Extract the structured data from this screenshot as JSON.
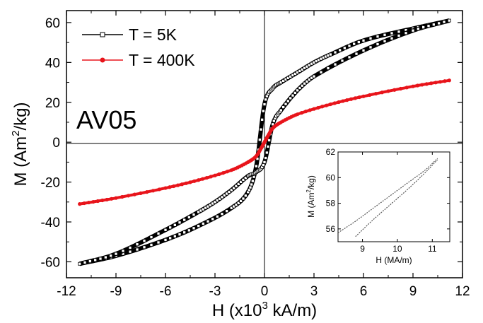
{
  "chart_data": [
    {
      "type": "line",
      "xlabel": "H (x10",
      "xlabel_sup": "3",
      "xlabel_tail": " kA/m)",
      "ylabel": "M (Am",
      "ylabel_sup": "2",
      "ylabel_tail": "/kg)",
      "annotation": "AV05",
      "xlim": [
        -12,
        12
      ],
      "ylim": [
        -68,
        66
      ],
      "xticks": [
        -12,
        -9,
        -6,
        -3,
        0,
        3,
        6,
        9,
        12
      ],
      "xtick_labels": [
        "-12",
        "-9",
        "-6",
        "-3",
        "0",
        "3",
        "6",
        "9",
        "12"
      ],
      "yticks": [
        -60,
        -40,
        -20,
        0,
        20,
        40,
        60
      ],
      "ytick_labels": [
        "-60",
        "-40",
        "-20",
        "0",
        "20",
        "40",
        "60"
      ],
      "legend_position": "top-left",
      "series": [
        {
          "name": "T = 5K",
          "color": "#000000",
          "marker": "open-square",
          "upper_branch": {
            "x": [
              -11.2,
              -9,
              -6,
              -4,
              -2,
              -1,
              -0.5,
              0,
              0.5,
              1,
              2,
              3,
              4,
              6,
              9,
              11.2
            ],
            "y": [
              -61,
              -57,
              -49,
              -42,
              -33,
              -25,
              -12,
              19,
              27,
              30,
              35,
              40,
              44,
              51,
              57,
              61
            ]
          },
          "lower_branch": {
            "x": [
              -11.2,
              -9,
              -6,
              -4,
              -3,
              -2,
              -1,
              -0.5,
              0,
              0.5,
              1,
              2,
              3,
              6,
              9,
              11.2
            ],
            "y": [
              -61,
              -56,
              -44,
              -35,
              -30,
              -24,
              -17,
              -15,
              -10,
              9,
              16,
              26,
              33,
              46,
              56,
              61
            ]
          }
        },
        {
          "name": "T = 400K",
          "color": "#e8141b",
          "marker": "filled-circle",
          "x": [
            -11.2,
            -9,
            -6,
            -4,
            -2,
            -1,
            -0.5,
            -0.2,
            0,
            0.2,
            0.5,
            1,
            2,
            4,
            6,
            9,
            11.2
          ],
          "y": [
            -31,
            -28,
            -23,
            -19,
            -14,
            -10,
            -7,
            -3,
            0,
            3,
            7,
            10,
            14,
            19,
            23,
            28,
            31
          ]
        }
      ]
    },
    {
      "type": "line",
      "xlabel": "H (MA/m)",
      "ylabel": "M (Am",
      "ylabel_sup": "2",
      "ylabel_tail": "/kg)",
      "xlim": [
        8.3,
        11.5
      ],
      "ylim": [
        55,
        62
      ],
      "xticks": [
        9,
        10,
        11
      ],
      "xtick_labels": [
        "9",
        "10",
        "11"
      ],
      "yticks": [
        56,
        58,
        60,
        62
      ],
      "ytick_labels": [
        "56",
        "58",
        "60",
        "62"
      ],
      "series": [
        {
          "color": "#555555",
          "upper_branch": {
            "x": [
              8.3,
              8.8,
              9.3,
              9.8,
              10.3,
              10.8,
              11.15
            ],
            "y": [
              55.7,
              56.6,
              57.6,
              58.6,
              59.6,
              60.6,
              61.5
            ]
          },
          "lower_branch": {
            "x": [
              8.8,
              9.3,
              9.8,
              10.3,
              10.8,
              11.15
            ],
            "y": [
              55.4,
              56.7,
              57.9,
              59.1,
              60.4,
              61.4
            ]
          }
        }
      ]
    }
  ]
}
